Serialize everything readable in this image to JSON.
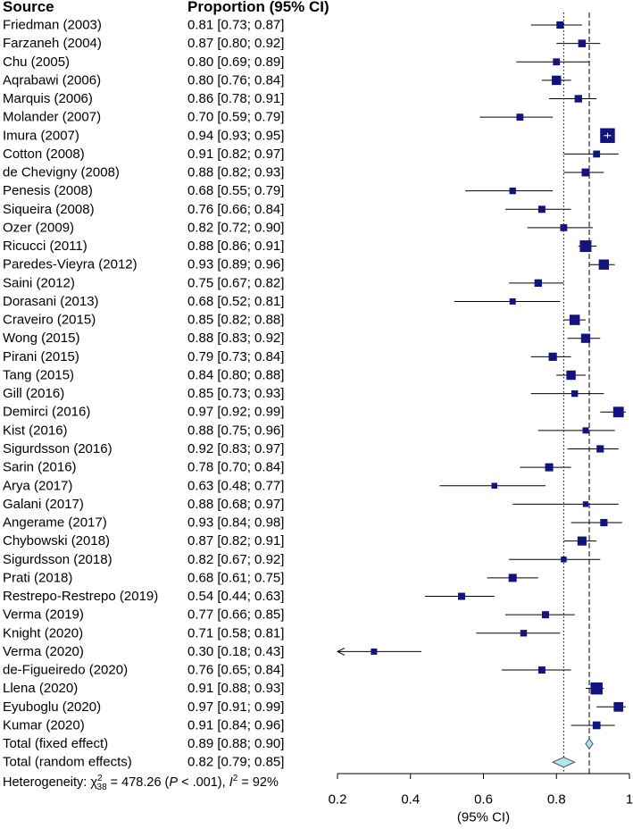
{
  "chart_data": {
    "type": "forest",
    "columns": {
      "source": "Source",
      "proportion": "Proportion (95% CI)"
    },
    "studies": [
      {
        "label": "Friedman (2003)",
        "ci_text": "0.81 [0.73; 0.87]",
        "est": 0.81,
        "lo": 0.73,
        "hi": 0.87,
        "weight": 2.2
      },
      {
        "label": "Farzaneh (2004)",
        "ci_text": "0.87 [0.80; 0.92]",
        "est": 0.87,
        "lo": 0.8,
        "hi": 0.92,
        "weight": 2.4
      },
      {
        "label": "Chu (2005)",
        "ci_text": "0.80 [0.69; 0.89]",
        "est": 0.8,
        "lo": 0.69,
        "hi": 0.89,
        "weight": 2.0
      },
      {
        "label": "Aqrabawi (2006)",
        "ci_text": "0.80 [0.76; 0.84]",
        "est": 0.8,
        "lo": 0.76,
        "hi": 0.84,
        "weight": 3.6
      },
      {
        "label": "Marquis (2006)",
        "ci_text": "0.86 [0.78; 0.91]",
        "est": 0.86,
        "lo": 0.78,
        "hi": 0.91,
        "weight": 2.3
      },
      {
        "label": "Molander (2007)",
        "ci_text": "0.70 [0.59; 0.79]",
        "est": 0.7,
        "lo": 0.59,
        "hi": 0.79,
        "weight": 2.0
      },
      {
        "label": "Imura (2007)",
        "ci_text": "0.94 [0.93; 0.95]",
        "est": 0.94,
        "lo": 0.93,
        "hi": 0.95,
        "weight": 9.0
      },
      {
        "label": "Cotton (2008)",
        "ci_text": "0.91 [0.82; 0.97]",
        "est": 0.91,
        "lo": 0.82,
        "hi": 0.97,
        "weight": 2.0
      },
      {
        "label": "de Chevigny (2008)",
        "ci_text": "0.88 [0.82; 0.93]",
        "est": 0.88,
        "lo": 0.82,
        "hi": 0.93,
        "weight": 2.6
      },
      {
        "label": "Penesis (2008)",
        "ci_text": "0.68 [0.55; 0.79]",
        "est": 0.68,
        "lo": 0.55,
        "hi": 0.79,
        "weight": 1.8
      },
      {
        "label": "Siqueira (2008)",
        "ci_text": "0.76 [0.66; 0.84]",
        "est": 0.76,
        "lo": 0.66,
        "hi": 0.84,
        "weight": 2.1
      },
      {
        "label": "Ozer (2009)",
        "ci_text": "0.82 [0.72; 0.90]",
        "est": 0.82,
        "lo": 0.72,
        "hi": 0.9,
        "weight": 2.0
      },
      {
        "label": "Ricucci (2011)",
        "ci_text": "0.88 [0.86; 0.91]",
        "est": 0.88,
        "lo": 0.86,
        "hi": 0.91,
        "weight": 5.6
      },
      {
        "label": "Paredes-Vieyra (2012)",
        "ci_text": "0.93 [0.89; 0.96]",
        "est": 0.93,
        "lo": 0.89,
        "hi": 0.96,
        "weight": 4.3
      },
      {
        "label": "Saini (2012)",
        "ci_text": "0.75 [0.67; 0.82]",
        "est": 0.75,
        "lo": 0.67,
        "hi": 0.82,
        "weight": 2.3
      },
      {
        "label": "Dorasani (2013)",
        "ci_text": "0.68 [0.52; 0.81]",
        "est": 0.68,
        "lo": 0.52,
        "hi": 0.81,
        "weight": 1.6
      },
      {
        "label": "Craveiro (2015)",
        "ci_text": "0.85 [0.82; 0.88]",
        "est": 0.85,
        "lo": 0.82,
        "hi": 0.88,
        "weight": 4.4
      },
      {
        "label": "Wong (2015)",
        "ci_text": "0.88 [0.83; 0.92]",
        "est": 0.88,
        "lo": 0.83,
        "hi": 0.92,
        "weight": 3.5
      },
      {
        "label": "Pirani (2015)",
        "ci_text": "0.79 [0.73; 0.84]",
        "est": 0.79,
        "lo": 0.73,
        "hi": 0.84,
        "weight": 2.8
      },
      {
        "label": "Tang (2015)",
        "ci_text": "0.84 [0.80; 0.88]",
        "est": 0.84,
        "lo": 0.8,
        "hi": 0.88,
        "weight": 3.6
      },
      {
        "label": "Gill (2016)",
        "ci_text": "0.85 [0.73; 0.93]",
        "est": 0.85,
        "lo": 0.73,
        "hi": 0.93,
        "weight": 1.8
      },
      {
        "label": "Demirci (2016)",
        "ci_text": "0.97 [0.92; 0.99]",
        "est": 0.97,
        "lo": 0.92,
        "hi": 0.99,
        "weight": 4.6
      },
      {
        "label": "Kist (2016)",
        "ci_text": "0.88 [0.75; 0.96]",
        "est": 0.88,
        "lo": 0.75,
        "hi": 0.96,
        "weight": 1.6
      },
      {
        "label": "Sigurdsson (2016)",
        "ci_text": "0.92 [0.83; 0.97]",
        "est": 0.92,
        "lo": 0.83,
        "hi": 0.97,
        "weight": 2.2
      },
      {
        "label": "Sarin (2016)",
        "ci_text": "0.78 [0.70; 0.84]",
        "est": 0.78,
        "lo": 0.7,
        "hi": 0.84,
        "weight": 2.7
      },
      {
        "label": "Arya (2017)",
        "ci_text": "0.63 [0.48; 0.77]",
        "est": 0.63,
        "lo": 0.48,
        "hi": 0.77,
        "weight": 1.4
      },
      {
        "label": "Galani (2017)",
        "ci_text": "0.88 [0.68; 0.97]",
        "est": 0.88,
        "lo": 0.68,
        "hi": 0.97,
        "weight": 1.3
      },
      {
        "label": "Angerame (2017)",
        "ci_text": "0.93 [0.84; 0.98]",
        "est": 0.93,
        "lo": 0.84,
        "hi": 0.98,
        "weight": 2.2
      },
      {
        "label": "Chybowski (2018)",
        "ci_text": "0.87 [0.82; 0.91]",
        "est": 0.87,
        "lo": 0.82,
        "hi": 0.91,
        "weight": 3.4
      },
      {
        "label": "Sigurdsson (2018)",
        "ci_text": "0.82 [0.67; 0.92]",
        "est": 0.82,
        "lo": 0.67,
        "hi": 0.92,
        "weight": 1.4
      },
      {
        "label": "Prati (2018)",
        "ci_text": "0.68 [0.61; 0.75]",
        "est": 0.68,
        "lo": 0.61,
        "hi": 0.75,
        "weight": 2.7
      },
      {
        "label": "Restrepo-Restrepo (2019)",
        "ci_text": "0.54 [0.44; 0.63]",
        "est": 0.54,
        "lo": 0.44,
        "hi": 0.63,
        "weight": 2.1
      },
      {
        "label": "Verma (2019)",
        "ci_text": "0.77 [0.66; 0.85]",
        "est": 0.77,
        "lo": 0.66,
        "hi": 0.85,
        "weight": 2.1
      },
      {
        "label": "Knight (2020)",
        "ci_text": "0.71 [0.58; 0.81]",
        "est": 0.71,
        "lo": 0.58,
        "hi": 0.81,
        "weight": 1.8
      },
      {
        "label": "Verma (2020)",
        "ci_text": "0.30 [0.18; 0.43]",
        "est": 0.3,
        "lo": 0.18,
        "hi": 0.43,
        "weight": 1.6
      },
      {
        "label": "de-Figueiredo (2020)",
        "ci_text": "0.76 [0.65; 0.84]",
        "est": 0.76,
        "lo": 0.65,
        "hi": 0.84,
        "weight": 2.1
      },
      {
        "label": "Llena (2020)",
        "ci_text": "0.91 [0.88; 0.93]",
        "est": 0.91,
        "lo": 0.88,
        "hi": 0.93,
        "weight": 6.0
      },
      {
        "label": "Eyuboglu (2020)",
        "ci_text": "0.97 [0.91; 0.99]",
        "est": 0.97,
        "lo": 0.91,
        "hi": 0.99,
        "weight": 3.8
      },
      {
        "label": "Kumar (2020)",
        "ci_text": "0.91 [0.84; 0.96]",
        "est": 0.91,
        "lo": 0.84,
        "hi": 0.96,
        "weight": 2.5
      }
    ],
    "summaries": [
      {
        "label": "Total (fixed effect)",
        "ci_text": "0.89 [0.88; 0.90]",
        "est": 0.89,
        "lo": 0.88,
        "hi": 0.9,
        "line_style": "dashed"
      },
      {
        "label": "Total (random effects)",
        "ci_text": "0.82 [0.79; 0.85]",
        "est": 0.82,
        "lo": 0.79,
        "hi": 0.85,
        "line_style": "dotted"
      }
    ],
    "heterogeneity": {
      "prefix": "Heterogeneity: ",
      "chi_symbol": "χ",
      "chi_sup": "2",
      "chi_sub": "38",
      "after_chi": " = 478.26 (",
      "p_symbol": "P",
      "after_p": " < .001), ",
      "i_symbol": "I",
      "i_sup": "2",
      "after_i": " = 92%"
    },
    "xaxis": {
      "label": "(95% CI)",
      "range": [
        0.2,
        1.0
      ],
      "ticks": [
        0.2,
        0.4,
        0.6,
        0.8,
        1.0
      ],
      "tick_labels": [
        "0.2",
        "0.4",
        "0.6",
        "0.8",
        "1"
      ]
    },
    "colors": {
      "square": "#13137f",
      "diamond_fill": "#b7e4ea",
      "line": "#000000",
      "ci_whisker_in_box": "#ffffff"
    }
  }
}
